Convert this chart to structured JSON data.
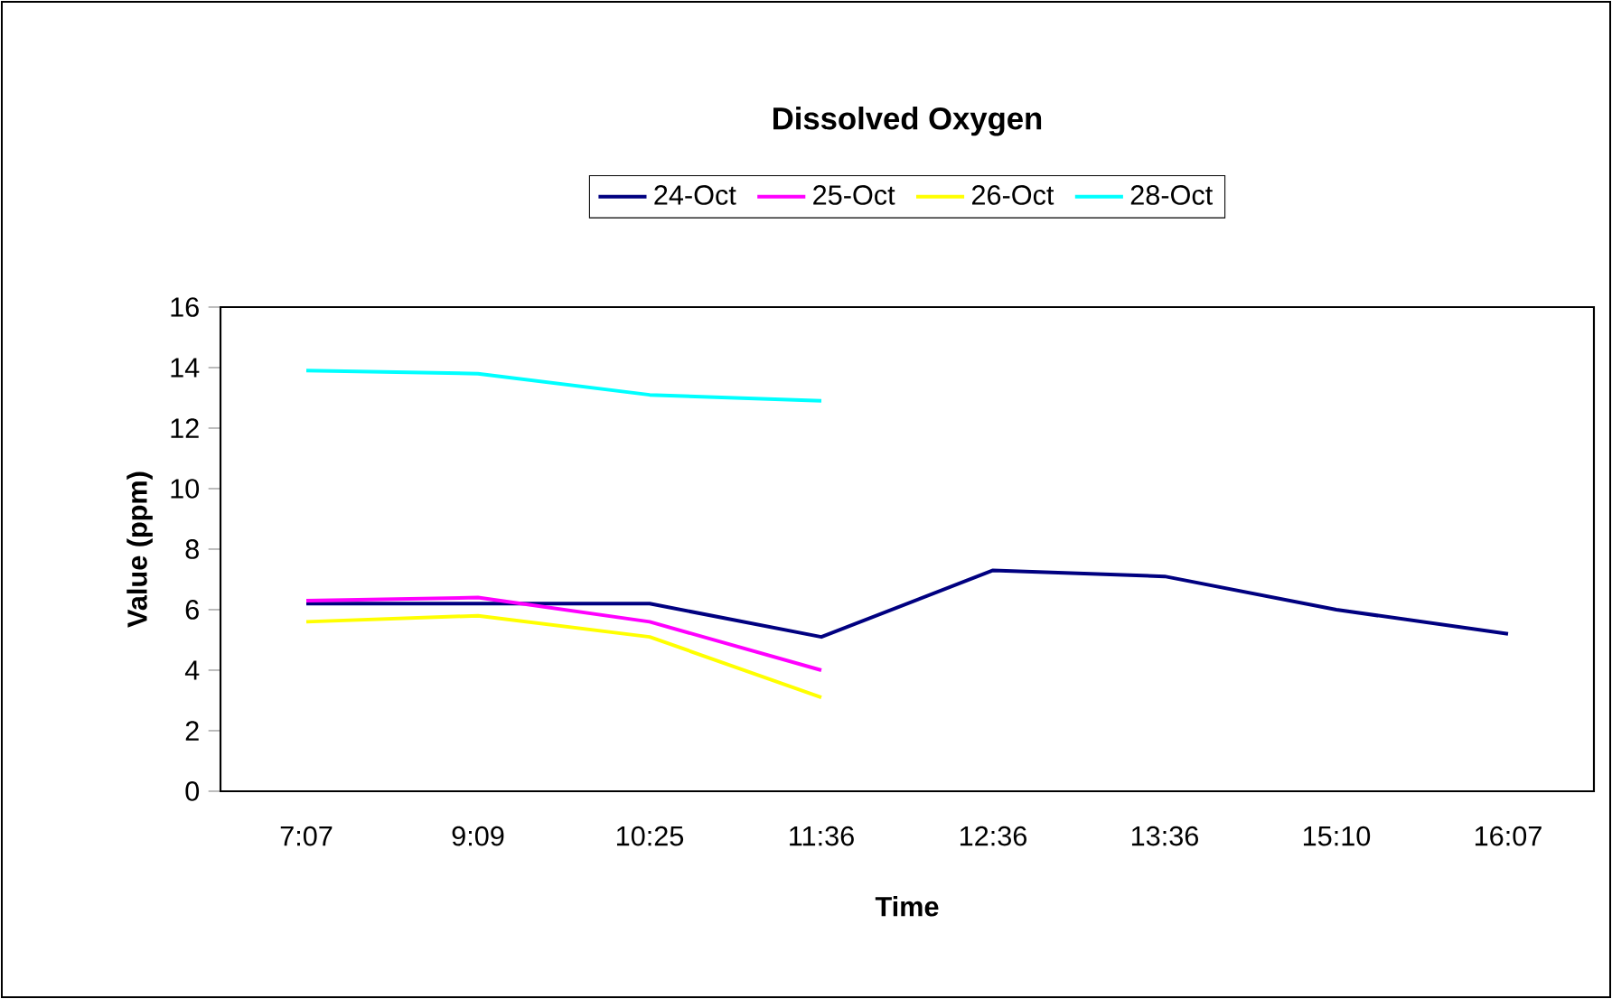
{
  "chart_data": {
    "type": "line",
    "title": "Dissolved Oxygen",
    "xlabel": "Time",
    "ylabel": "Value (ppm)",
    "categories": [
      "7:07",
      "9:09",
      "10:25",
      "11:36",
      "12:36",
      "13:36",
      "15:10",
      "16:07"
    ],
    "series": [
      {
        "name": "24-Oct",
        "color": "#000080",
        "values": [
          6.2,
          6.2,
          6.2,
          5.1,
          7.3,
          7.1,
          6.0,
          5.2
        ]
      },
      {
        "name": "25-Oct",
        "color": "#ff00ff",
        "values": [
          6.3,
          6.4,
          5.6,
          4.0,
          null,
          null,
          null,
          null
        ]
      },
      {
        "name": "26-Oct",
        "color": "#ffff00",
        "values": [
          5.6,
          5.8,
          5.1,
          3.1,
          null,
          null,
          null,
          null
        ]
      },
      {
        "name": "28-Oct",
        "color": "#00ffff",
        "values": [
          13.9,
          13.8,
          13.1,
          12.9,
          null,
          null,
          null,
          null
        ]
      }
    ],
    "ylim": [
      0,
      16
    ],
    "yticks": [
      0,
      2,
      4,
      6,
      8,
      10,
      12,
      14,
      16
    ],
    "grid": false,
    "legend": "top",
    "marker": "none",
    "line_style": "solid"
  }
}
